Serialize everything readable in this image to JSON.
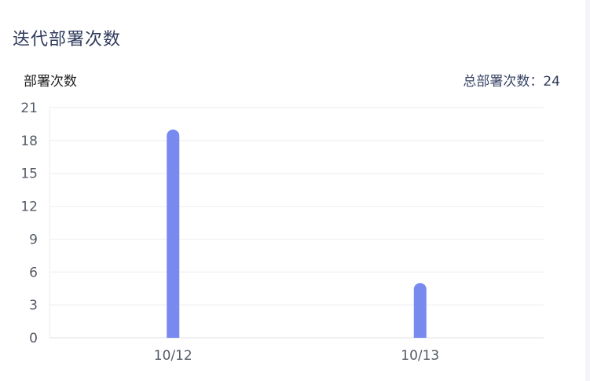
{
  "card": {
    "title": "迭代部署次数",
    "chart_label": "部署次数",
    "total_label": "总部署次数：",
    "total_value": "24"
  },
  "colors": {
    "bar": "#7889f0",
    "grid": "#eceef3",
    "axis_text": "#555b66"
  },
  "chart_data": {
    "type": "bar",
    "title": "",
    "xlabel": "",
    "ylabel": "部署次数",
    "categories": [
      "10/12",
      "10/13"
    ],
    "values": [
      19,
      5
    ],
    "ylim": [
      0,
      21
    ],
    "yticks": [
      0,
      3,
      6,
      9,
      12,
      15,
      18,
      21
    ],
    "grid": true,
    "legend": "none"
  }
}
